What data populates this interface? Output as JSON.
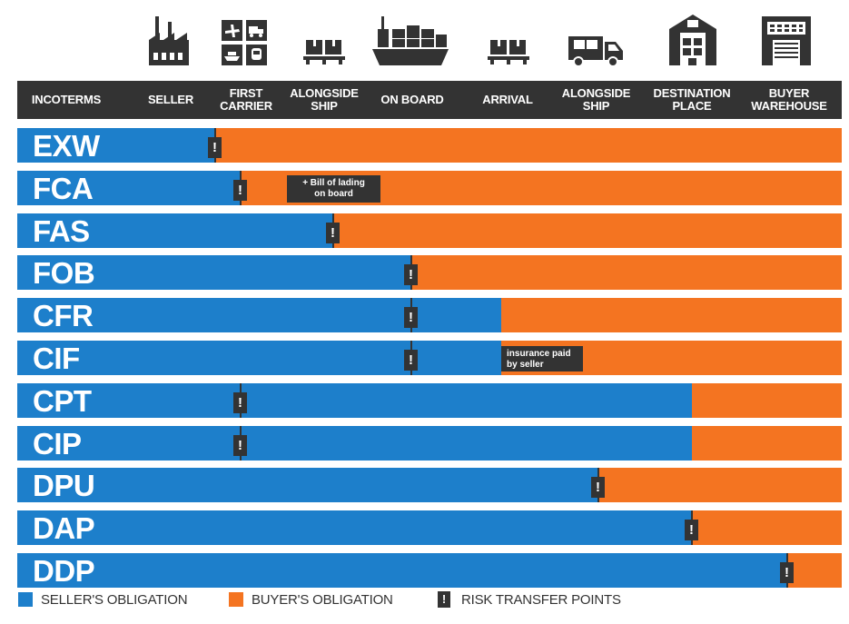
{
  "header": {
    "labels": [
      "INCOTERMS",
      "SELLER",
      "FIRST\nCARRIER",
      "ALONGSIDE\nSHIP",
      "ON BOARD",
      "ARRIVAL",
      "ALONGSIDE\nSHIP",
      "DESTINATION\nPLACE",
      "BUYER\nWAREHOUSE"
    ]
  },
  "icons": [
    "factory-icon",
    "carrier-modes-icon",
    "cargo-boxes-icon",
    "cargo-ship-icon",
    "cargo-boxes-icon",
    "delivery-truck-icon",
    "warehouse-icon",
    "buyer-building-icon"
  ],
  "terms": [
    {
      "code": "EXW",
      "seller_point": 1.0,
      "risk_point": 1.0
    },
    {
      "code": "FCA",
      "seller_point": 2.0,
      "risk_point": 2.0
    },
    {
      "code": "FAS",
      "seller_point": 3.0,
      "risk_point": 3.0
    },
    {
      "code": "FOB",
      "seller_point": 4.0,
      "risk_point": 4.0
    },
    {
      "code": "CFR",
      "seller_point": 5.0,
      "risk_point": 4.0
    },
    {
      "code": "CIF",
      "seller_point": 5.0,
      "risk_point": 4.0
    },
    {
      "code": "CPT",
      "seller_point": 7.0,
      "risk_point": 2.0
    },
    {
      "code": "CIP",
      "seller_point": 7.0,
      "risk_point": 2.0
    },
    {
      "code": "DPU",
      "seller_point": 6.0,
      "risk_point": 6.0
    },
    {
      "code": "DAP",
      "seller_point": 7.0,
      "risk_point": 7.0
    },
    {
      "code": "DDP",
      "seller_point": 8.0,
      "risk_point": 8.0
    }
  ],
  "marker_symbol": "!",
  "notes": {
    "fca": "+ Bill of lading\non board",
    "cif": "insurance paid\nby seller"
  },
  "legend": {
    "seller": "SELLER'S OBLIGATION",
    "buyer": "BUYER'S OBLIGATION",
    "risk": "RISK TRANSFER POINTS"
  },
  "colors": {
    "seller": "#1D7FCB",
    "buyer": "#F47421",
    "dark": "#333333"
  }
}
